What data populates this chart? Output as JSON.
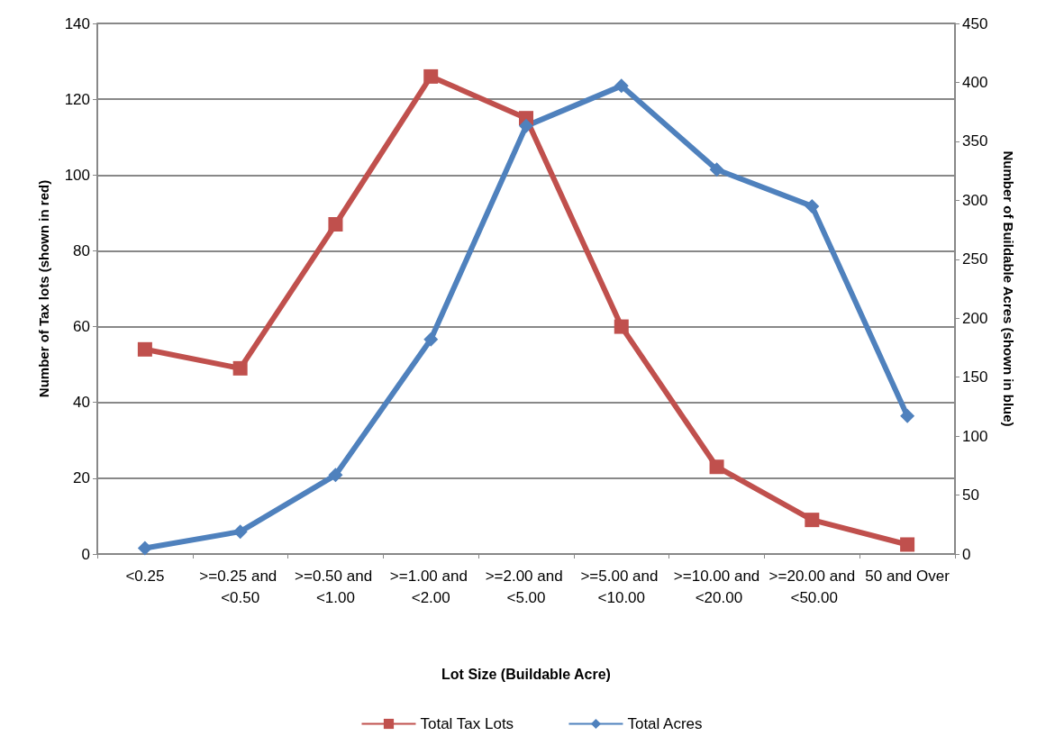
{
  "chart_data": {
    "type": "line",
    "xlabel": "Lot Size (Buildable Acre)",
    "ylabel": "Number of Tax lots (shown in red)",
    "y2label": "Number of Buildable Acres (shown in blue)",
    "categories": [
      "<0.25",
      ">=0.25 and <0.50",
      ">=0.50 and <1.00",
      ">=1.00 and <2.00",
      ">=2.00 and <5.00",
      ">=5.00 and <10.00",
      ">=10.00 and <20.00",
      ">=20.00 and <50.00",
      "50 and Over"
    ],
    "series": [
      {
        "name": "Total Tax Lots",
        "color": "#c0504d",
        "marker": "square",
        "values": [
          54,
          49,
          87,
          126,
          115,
          60,
          23,
          9,
          2.5
        ]
      },
      {
        "name": "Total Acres",
        "color": "#4f81bd",
        "marker": "diamond",
        "axis": "y2",
        "values": [
          5,
          19,
          67,
          182,
          363,
          397,
          326,
          295,
          117
        ]
      }
    ],
    "ylim": [
      0,
      140
    ],
    "yticks": [
      0,
      20,
      40,
      60,
      80,
      100,
      120,
      140
    ],
    "y2lim": [
      0,
      450
    ],
    "y2ticks": [
      0,
      50,
      100,
      150,
      200,
      250,
      300,
      350,
      400,
      450
    ],
    "grid": "y",
    "legend": "bottom",
    "line_style": "solid"
  }
}
